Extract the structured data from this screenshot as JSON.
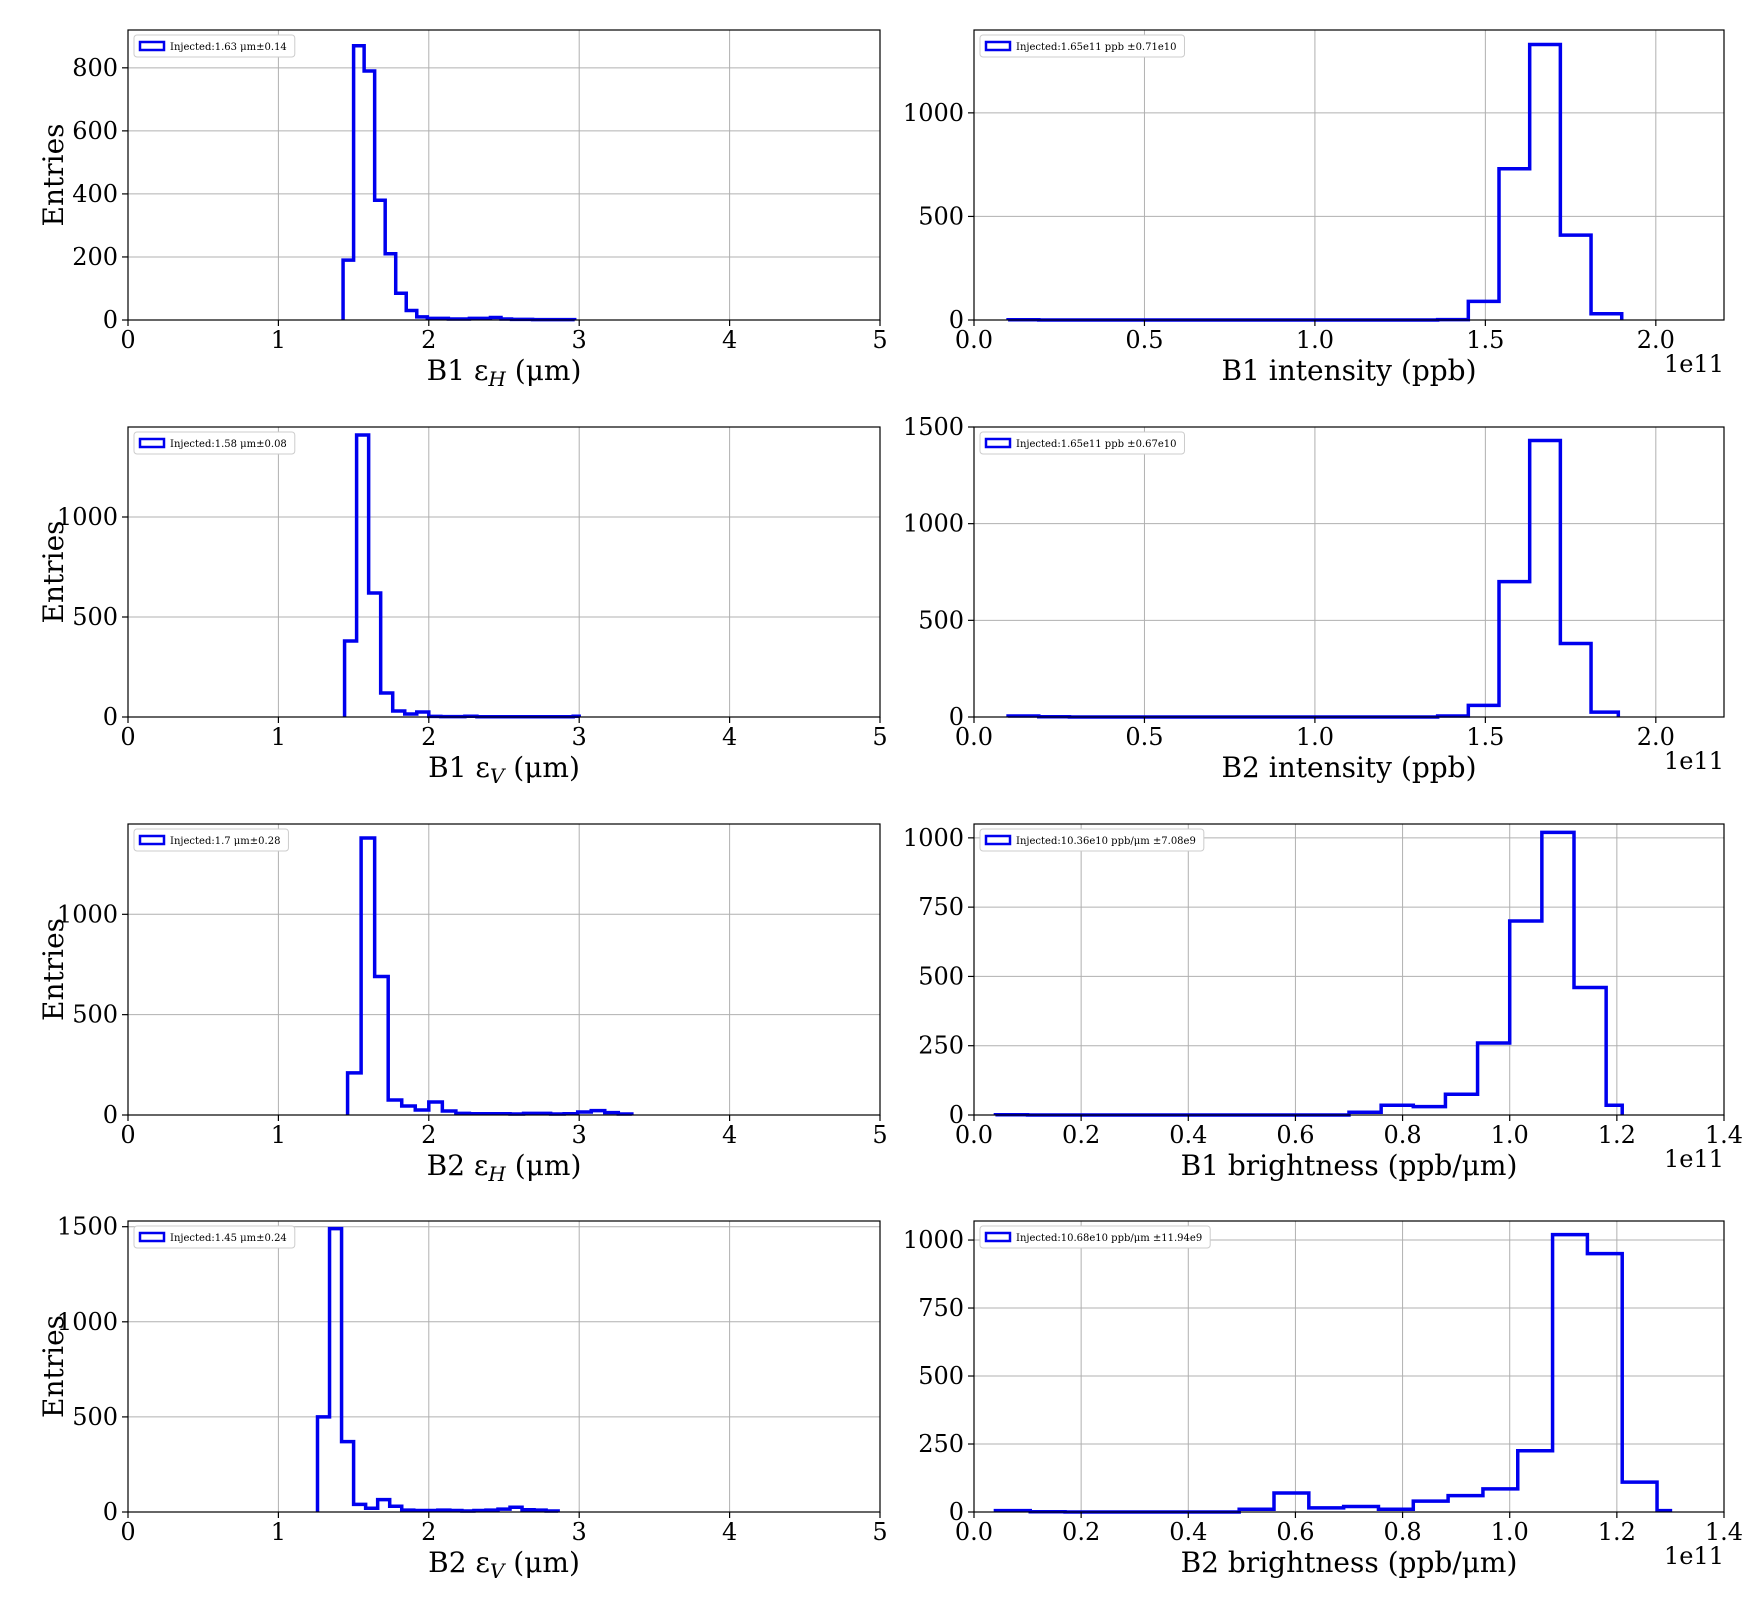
{
  "chart_data": [
    {
      "type": "histogram",
      "xlabel": "B1 εH (μm)",
      "xlabel_main": "B1 ε",
      "xlabel_sub": "H",
      "xlabel_unit": "(μm)",
      "ylabel": "Entries",
      "xlim": [
        0,
        5
      ],
      "ylim": [
        0,
        920
      ],
      "xticks": [
        0,
        1,
        2,
        3,
        4,
        5
      ],
      "xtick_labels": [
        "0",
        "1",
        "2",
        "3",
        "4",
        "5"
      ],
      "yticks": [
        0,
        200,
        400,
        600,
        800
      ],
      "ytick_labels": [
        "0",
        "200",
        "400",
        "600",
        "800"
      ],
      "x_offset_label": "",
      "legend": "Injected:1.63 μm±0.14",
      "bin_edges": [
        1.43,
        1.5,
        1.57,
        1.64,
        1.71,
        1.78,
        1.85,
        1.92,
        1.99,
        2.06,
        2.13,
        2.2,
        2.27,
        2.34,
        2.41,
        2.48,
        2.55,
        2.62,
        2.69,
        2.76,
        2.83,
        2.9,
        2.97
      ],
      "counts": [
        190,
        870,
        790,
        380,
        210,
        85,
        30,
        10,
        5,
        5,
        3,
        3,
        5,
        5,
        8,
        3,
        2,
        2,
        1,
        1,
        1,
        1
      ],
      "grid": true,
      "legend_position": "upper-left"
    },
    {
      "type": "histogram",
      "xlabel": "B1 intensity (ppb)",
      "ylabel": "",
      "xlim": [
        0,
        2.2
      ],
      "ylim": [
        0,
        1400
      ],
      "xticks": [
        0,
        0.5,
        1.0,
        1.5,
        2.0
      ],
      "xtick_labels": [
        "0.0",
        "0.5",
        "1.0",
        "1.5",
        "2.0"
      ],
      "yticks": [
        0,
        500,
        1000
      ],
      "ytick_labels": [
        "0",
        "500",
        "1000"
      ],
      "x_offset_label": "1e11",
      "legend": "Injected:1.65e11 ppb ±0.71e10",
      "bin_edges": [
        0.1,
        0.19,
        0.28,
        0.37,
        0.46,
        0.55,
        0.64,
        0.73,
        0.82,
        0.91,
        1.0,
        1.09,
        1.18,
        1.27,
        1.36,
        1.45,
        1.54,
        1.63,
        1.72,
        1.81,
        1.9
      ],
      "counts": [
        1,
        0,
        0,
        0,
        0,
        0,
        0,
        0,
        0,
        0,
        0,
        0,
        0,
        0,
        2,
        90,
        730,
        1330,
        410,
        30
      ],
      "grid": true,
      "legend_position": "upper-left"
    },
    {
      "type": "histogram",
      "xlabel": "B1 εV (μm)",
      "xlabel_main": "B1 ε",
      "xlabel_sub": "V",
      "xlabel_unit": "(μm)",
      "ylabel": "Entries",
      "xlim": [
        0,
        5
      ],
      "ylim": [
        0,
        1450
      ],
      "xticks": [
        0,
        1,
        2,
        3,
        4,
        5
      ],
      "xtick_labels": [
        "0",
        "1",
        "2",
        "3",
        "4",
        "5"
      ],
      "yticks": [
        0,
        500,
        1000
      ],
      "ytick_labels": [
        "0",
        "500",
        "1000"
      ],
      "x_offset_label": "",
      "legend": "Injected:1.58 μm±0.08",
      "bin_edges": [
        1.44,
        1.52,
        1.6,
        1.68,
        1.76,
        1.84,
        1.92,
        2.0,
        2.08,
        2.16,
        2.24,
        2.32,
        2.4,
        2.48,
        2.56,
        2.64,
        2.72,
        2.8,
        2.88,
        2.96,
        3.0
      ],
      "counts": [
        380,
        1410,
        620,
        120,
        30,
        15,
        25,
        3,
        2,
        2,
        4,
        1,
        1,
        1,
        1,
        1,
        1,
        1,
        1,
        4
      ],
      "grid": true,
      "legend_position": "upper-left"
    },
    {
      "type": "histogram",
      "xlabel": "B2 intensity (ppb)",
      "ylabel": "",
      "xlim": [
        0,
        2.2
      ],
      "ylim": [
        0,
        1500
      ],
      "xticks": [
        0,
        0.5,
        1.0,
        1.5,
        2.0
      ],
      "xtick_labels": [
        "0.0",
        "0.5",
        "1.0",
        "1.5",
        "2.0"
      ],
      "yticks": [
        0,
        500,
        1000,
        1500
      ],
      "ytick_labels": [
        "0",
        "500",
        "1000",
        "1500"
      ],
      "x_offset_label": "1e11",
      "legend": "Injected:1.65e11 ppb ±0.67e10",
      "bin_edges": [
        0.1,
        0.19,
        0.28,
        0.37,
        0.46,
        0.55,
        0.64,
        0.73,
        0.82,
        0.91,
        1.0,
        1.09,
        1.18,
        1.27,
        1.36,
        1.45,
        1.54,
        1.63,
        1.72,
        1.81,
        1.89
      ],
      "counts": [
        5,
        1,
        0,
        0,
        0,
        0,
        0,
        0,
        0,
        0,
        0,
        0,
        0,
        0,
        5,
        60,
        700,
        1430,
        380,
        25
      ],
      "grid": true,
      "legend_position": "upper-left"
    },
    {
      "type": "histogram",
      "xlabel": "B2 εH (μm)",
      "xlabel_main": "B2 ε",
      "xlabel_sub": "H",
      "xlabel_unit": "(μm)",
      "ylabel": "Entries",
      "xlim": [
        0,
        5
      ],
      "ylim": [
        0,
        1450
      ],
      "xticks": [
        0,
        1,
        2,
        3,
        4,
        5
      ],
      "xtick_labels": [
        "0",
        "1",
        "2",
        "3",
        "4",
        "5"
      ],
      "yticks": [
        0,
        500,
        1000
      ],
      "ytick_labels": [
        "0",
        "500",
        "1000"
      ],
      "x_offset_label": "",
      "legend": "Injected:1.7 μm±0.28",
      "bin_edges": [
        1.46,
        1.55,
        1.64,
        1.73,
        1.82,
        1.91,
        2.0,
        2.09,
        2.18,
        2.27,
        2.36,
        2.45,
        2.54,
        2.63,
        2.72,
        2.81,
        2.9,
        2.99,
        3.08,
        3.17,
        3.26,
        3.35
      ],
      "counts": [
        210,
        1380,
        690,
        75,
        45,
        25,
        65,
        20,
        8,
        6,
        6,
        6,
        5,
        8,
        8,
        5,
        6,
        15,
        22,
        12,
        5
      ],
      "grid": true,
      "legend_position": "upper-left"
    },
    {
      "type": "histogram",
      "xlabel": "B1 brightness (ppb/μm)",
      "ylabel": "",
      "xlim": [
        0,
        1.4
      ],
      "ylim": [
        0,
        1050
      ],
      "xticks": [
        0,
        0.2,
        0.4,
        0.6,
        0.8,
        1.0,
        1.2,
        1.4
      ],
      "xtick_labels": [
        "0.0",
        "0.2",
        "0.4",
        "0.6",
        "0.8",
        "1.0",
        "1.2",
        "1.4"
      ],
      "yticks": [
        0,
        250,
        500,
        750,
        1000
      ],
      "ytick_labels": [
        "0",
        "250",
        "500",
        "750",
        "1000"
      ],
      "x_offset_label": "1e11",
      "legend": "Injected:10.36e10 ppb/μm ±7.08e9",
      "bin_edges": [
        0.04,
        0.1,
        0.16,
        0.22,
        0.28,
        0.34,
        0.4,
        0.46,
        0.52,
        0.58,
        0.64,
        0.7,
        0.76,
        0.82,
        0.88,
        0.94,
        1.0,
        1.06,
        1.12,
        1.18,
        1.21
      ],
      "counts": [
        1,
        0,
        0,
        0,
        0,
        0,
        0,
        0,
        0,
        0,
        0,
        10,
        35,
        30,
        75,
        260,
        700,
        1020,
        460,
        35
      ],
      "grid": true,
      "legend_position": "upper-left"
    },
    {
      "type": "histogram",
      "xlabel": "B2 εV (μm)",
      "xlabel_main": "B2 ε",
      "xlabel_sub": "V",
      "xlabel_unit": "(μm)",
      "ylabel": "Entries",
      "xlim": [
        0,
        5
      ],
      "ylim": [
        0,
        1530
      ],
      "xticks": [
        0,
        1,
        2,
        3,
        4,
        5
      ],
      "xtick_labels": [
        "0",
        "1",
        "2",
        "3",
        "4",
        "5"
      ],
      "yticks": [
        0,
        500,
        1000,
        1500
      ],
      "ytick_labels": [
        "0",
        "500",
        "1000",
        "1500"
      ],
      "x_offset_label": "",
      "legend": "Injected:1.45 μm±0.24",
      "bin_edges": [
        1.26,
        1.34,
        1.42,
        1.5,
        1.58,
        1.66,
        1.74,
        1.82,
        1.9,
        1.98,
        2.06,
        2.14,
        2.22,
        2.3,
        2.38,
        2.46,
        2.54,
        2.62,
        2.7,
        2.78,
        2.86
      ],
      "counts": [
        500,
        1490,
        370,
        40,
        20,
        65,
        30,
        10,
        8,
        8,
        10,
        8,
        5,
        8,
        10,
        15,
        25,
        12,
        10,
        5
      ],
      "grid": true,
      "legend_position": "upper-left"
    },
    {
      "type": "histogram",
      "xlabel": "B2 brightness (ppb/μm)",
      "ylabel": "",
      "xlim": [
        0,
        1.4
      ],
      "ylim": [
        0,
        1070
      ],
      "xticks": [
        0,
        0.2,
        0.4,
        0.6,
        0.8,
        1.0,
        1.2,
        1.4
      ],
      "xtick_labels": [
        "0.0",
        "0.2",
        "0.4",
        "0.6",
        "0.8",
        "1.0",
        "1.2",
        "1.4"
      ],
      "yticks": [
        0,
        250,
        500,
        750,
        1000
      ],
      "ytick_labels": [
        "0",
        "250",
        "500",
        "750",
        "1000"
      ],
      "x_offset_label": "1e11",
      "legend": "Injected:10.68e10 ppb/μm ±11.94e9",
      "bin_edges": [
        0.04,
        0.105,
        0.17,
        0.235,
        0.3,
        0.365,
        0.43,
        0.495,
        0.56,
        0.625,
        0.69,
        0.755,
        0.82,
        0.885,
        0.95,
        1.015,
        1.08,
        1.145,
        1.21,
        1.275,
        1.3
      ],
      "counts": [
        5,
        1,
        0,
        0,
        0,
        0,
        0,
        10,
        70,
        15,
        20,
        10,
        40,
        60,
        85,
        225,
        1020,
        950,
        110,
        5
      ],
      "grid": true,
      "legend_position": "upper-left"
    }
  ]
}
